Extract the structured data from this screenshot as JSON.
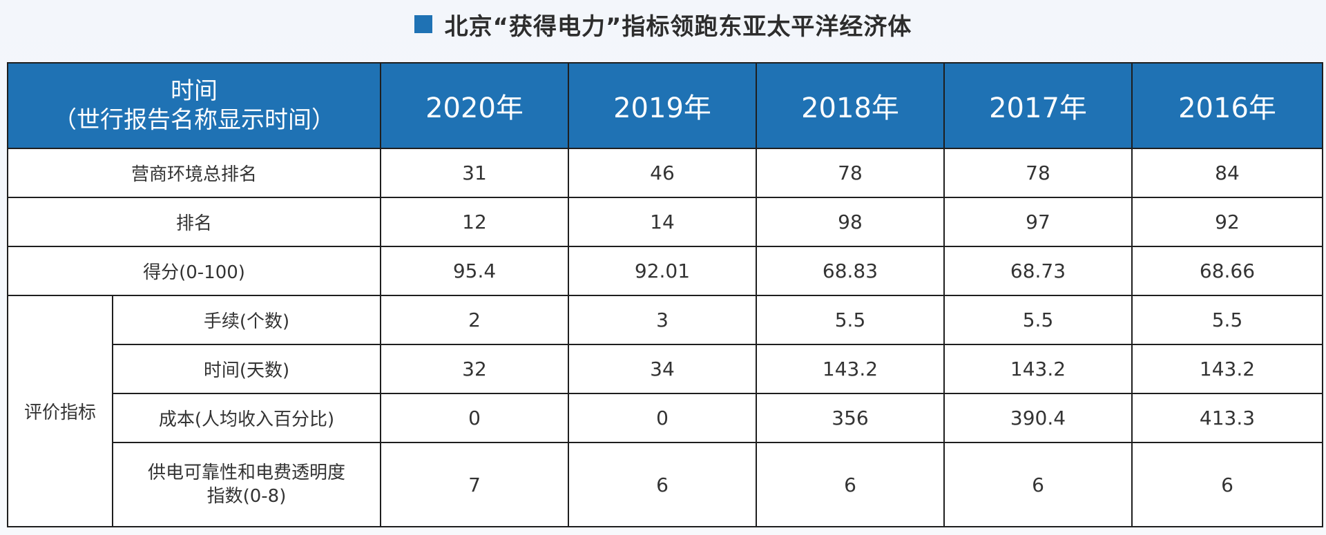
{
  "title": "北京“获得电力”指标领跑东亚太平洋经济体",
  "header": {
    "time_line1": "时间",
    "time_line2": "（世行报告名称显示时间）",
    "years": [
      "2020年",
      "2019年",
      "2018年",
      "2017年",
      "2016年"
    ]
  },
  "rows": [
    {
      "label": "营商环境总排名",
      "values": [
        "31",
        "46",
        "78",
        "78",
        "84"
      ]
    },
    {
      "label": "排名",
      "values": [
        "12",
        "14",
        "98",
        "97",
        "92"
      ]
    },
    {
      "label": "得分(0-100)",
      "values": [
        "95.4",
        "92.01",
        "68.83",
        "68.73",
        "68.66"
      ]
    }
  ],
  "evaluation": {
    "group_label": "评价指标",
    "rows": [
      {
        "label": "手续(个数)",
        "values": [
          "2",
          "3",
          "5.5",
          "5.5",
          "5.5"
        ]
      },
      {
        "label": "时间(天数)",
        "values": [
          "32",
          "34",
          "143.2",
          "143.2",
          "143.2"
        ]
      },
      {
        "label": "成本(人均收入百分比)",
        "values": [
          "0",
          "0",
          "356",
          "390.4",
          "413.3"
        ]
      },
      {
        "label_line1": "供电可靠性和电费透明度",
        "label_line2": "指数(0-8)",
        "values": [
          "7",
          "6",
          "6",
          "6",
          "6"
        ]
      }
    ]
  },
  "colors": {
    "header_bg": "#1f72b4",
    "title_square": "#1f72b4"
  }
}
